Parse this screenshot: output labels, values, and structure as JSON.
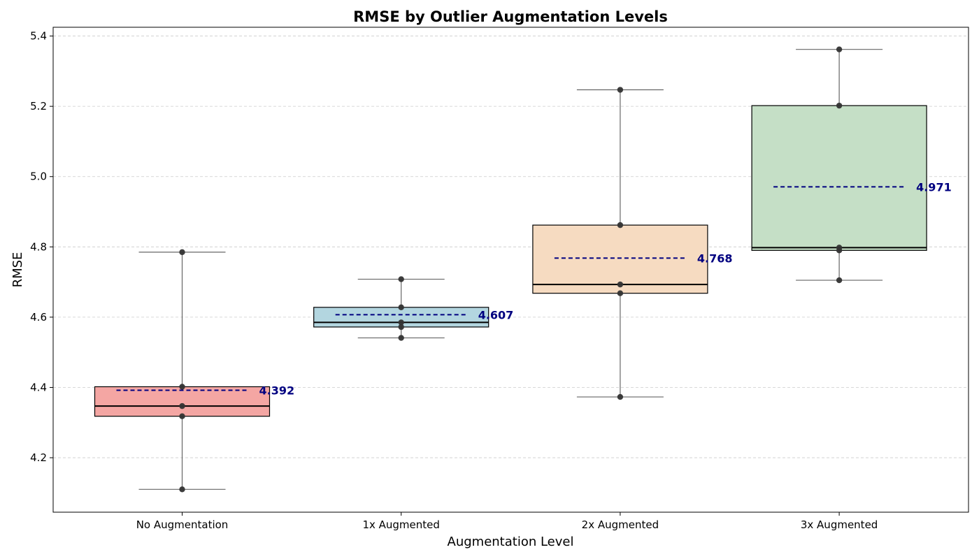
{
  "chart_data": {
    "type": "box",
    "title": "RMSE by Outlier Augmentation Levels",
    "xlabel": "Augmentation Level",
    "ylabel": "RMSE",
    "ylim": [
      4.045,
      5.425
    ],
    "yticks": [
      4.2,
      4.4,
      4.6,
      4.8,
      5.0,
      5.2,
      5.4
    ],
    "ytick_labels": [
      "4.2",
      "4.4",
      "4.6",
      "4.8",
      "5.0",
      "5.2",
      "5.4"
    ],
    "grid": "y-dashed",
    "categories": [
      "No Augmentation",
      "1x Augmented",
      "2x Augmented",
      "3x Augmented"
    ],
    "colors": [
      "#f4a6a3",
      "#b3d6e0",
      "#f6dbc1",
      "#c5dfc6"
    ],
    "mean_color": "#000080",
    "boxes": [
      {
        "whisker_low": 4.11,
        "q1": 4.318,
        "median": 4.347,
        "q3": 4.402,
        "whisker_high": 4.785,
        "mean": 4.392,
        "mean_label": "4.392"
      },
      {
        "whisker_low": 4.541,
        "q1": 4.572,
        "median": 4.585,
        "q3": 4.628,
        "whisker_high": 4.708,
        "mean": 4.607,
        "mean_label": "4.607"
      },
      {
        "whisker_low": 4.373,
        "q1": 4.668,
        "median": 4.693,
        "q3": 4.862,
        "whisker_high": 5.247,
        "mean": 4.768,
        "mean_label": "4.768"
      },
      {
        "whisker_low": 4.705,
        "q1": 4.79,
        "median": 4.798,
        "q3": 5.202,
        "whisker_high": 5.362,
        "mean": 4.971,
        "mean_label": "4.971"
      }
    ],
    "points": [
      [
        4.11,
        4.318,
        4.347,
        4.402,
        4.785
      ],
      [
        4.541,
        4.572,
        4.585,
        4.628,
        4.708
      ],
      [
        4.373,
        4.668,
        4.693,
        4.862,
        5.247
      ],
      [
        4.705,
        4.79,
        4.798,
        5.202,
        5.362
      ]
    ]
  }
}
